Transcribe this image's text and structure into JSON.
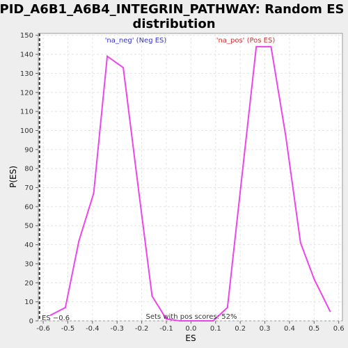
{
  "chart_data": {
    "type": "line",
    "title_line1": "PID_A6B1_A6B4_INTEGRIN_PATHWAY: Random ES",
    "title_line2": "distribution",
    "xlabel": "ES",
    "ylabel": "P(ES)",
    "xlim": [
      -0.62,
      0.615
    ],
    "ylim": [
      0,
      151
    ],
    "xticks": [
      "-0.6",
      "-0.5",
      "-0.4",
      "-0.3",
      "-0.2",
      "-0.1",
      "0.0",
      "0.1",
      "0.2",
      "0.3",
      "0.4",
      "0.5",
      "0.6"
    ],
    "yticks": [
      "0",
      "10",
      "20",
      "30",
      "40",
      "50",
      "60",
      "70",
      "80",
      "90",
      "100",
      "110",
      "120",
      "130",
      "140",
      "150"
    ],
    "grid": true,
    "line_color": "#ee44ee",
    "x": [
      -0.57,
      -0.51,
      -0.455,
      -0.395,
      -0.34,
      -0.275,
      -0.215,
      -0.158,
      -0.1,
      -0.045,
      0.025,
      0.09,
      0.148,
      0.2,
      0.265,
      0.325,
      0.385,
      0.445,
      0.5,
      0.565
    ],
    "y": [
      3,
      7,
      42,
      67,
      139,
      133,
      71,
      13,
      1,
      0,
      0,
      0,
      7,
      68,
      144,
      144,
      97,
      41,
      22,
      5
    ],
    "actual_es_label": "ES −0.6",
    "actual_es_value": -0.615,
    "annotations": {
      "neg": "'na_neg' (Neg ES)",
      "neg_color": "#3333cc",
      "pos": "'na_pos' (Pos ES)",
      "pos_color": "#cc3333",
      "footer": "Sets with pos scores: 52%"
    }
  }
}
